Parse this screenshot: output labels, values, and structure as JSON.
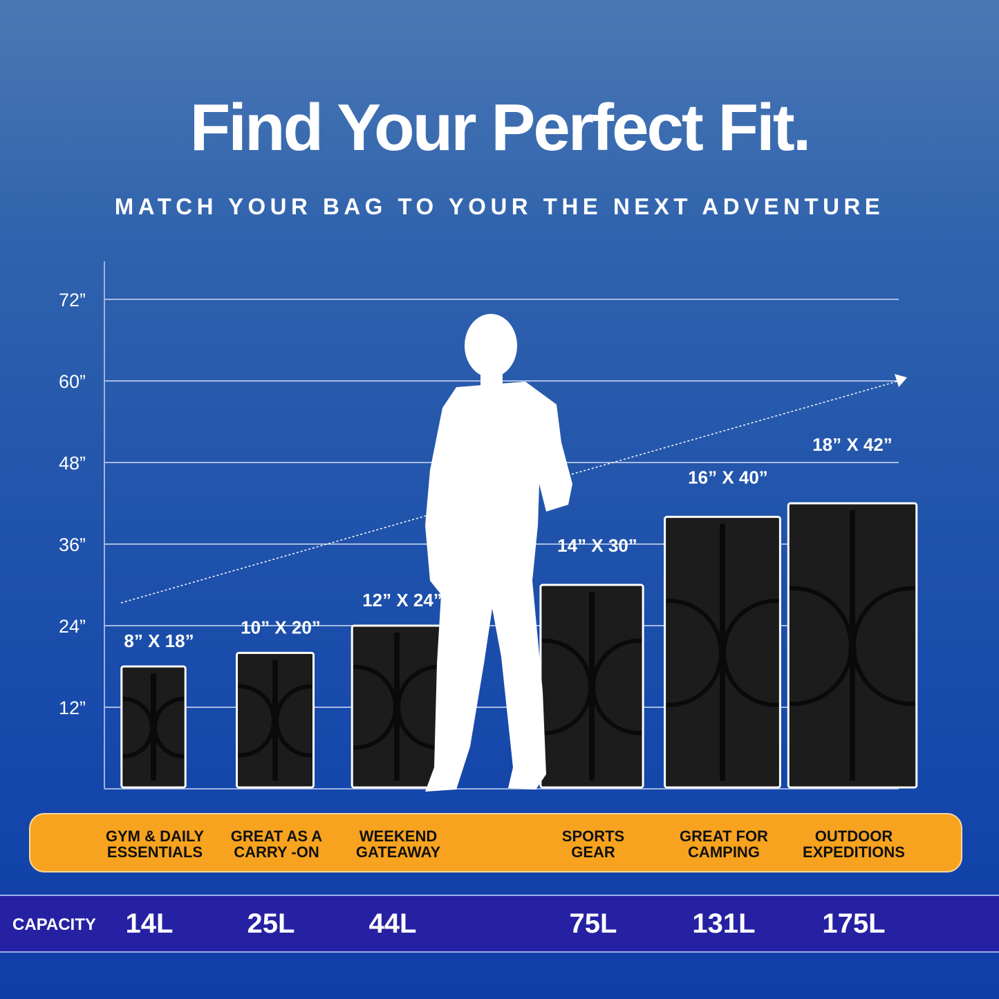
{
  "header": {
    "title": "Find Your Perfect Fit.",
    "subtitle": "MATCH YOUR BAG TO YOUR THE NEXT ADVENTURE"
  },
  "colors": {
    "band": "#f7a31f",
    "capacity_band": "#2621a2",
    "bag": "#1c1c1c",
    "background": "#1f52ab"
  },
  "chart_data": {
    "type": "bar",
    "ylim": [
      0,
      72
    ],
    "y_ticks": [
      "12”",
      "24”",
      "36”",
      "48”",
      "60”",
      "72”"
    ],
    "y_tick_values": [
      12,
      24,
      36,
      48,
      60,
      72
    ],
    "grid": true,
    "trend_arrow": true,
    "figure": "person-silhouette",
    "categories": [
      "GYM & DAILY ESSENTIALS",
      "GREAT AS A CARRY -ON",
      "WEEKEND GATEAWAY",
      "SPORTS GEAR",
      "GREAT FOR CAMPING",
      "OUTDOOR EXPEDITIONS"
    ],
    "labels": [
      "8” X 18”",
      "10” X 20”",
      "12” X 24”",
      "14” X 30”",
      "16” X 40”",
      "18” X 42”"
    ],
    "widths": [
      8,
      10,
      12,
      14,
      16,
      18
    ],
    "values": [
      18,
      20,
      24,
      30,
      40,
      42
    ],
    "capacity": [
      "14L",
      "25L",
      "44L",
      "75L",
      "131L",
      "175L"
    ]
  },
  "uses": [
    [
      "GYM & DAILY",
      "ESSENTIALS"
    ],
    [
      "GREAT AS A",
      "CARRY -ON"
    ],
    [
      "WEEKEND",
      "GATEAWAY"
    ],
    [
      "SPORTS",
      "GEAR"
    ],
    [
      "GREAT FOR",
      "CAMPING"
    ],
    [
      "OUTDOOR",
      "EXPEDITIONS"
    ]
  ],
  "capacity_label": "CAPACITY"
}
